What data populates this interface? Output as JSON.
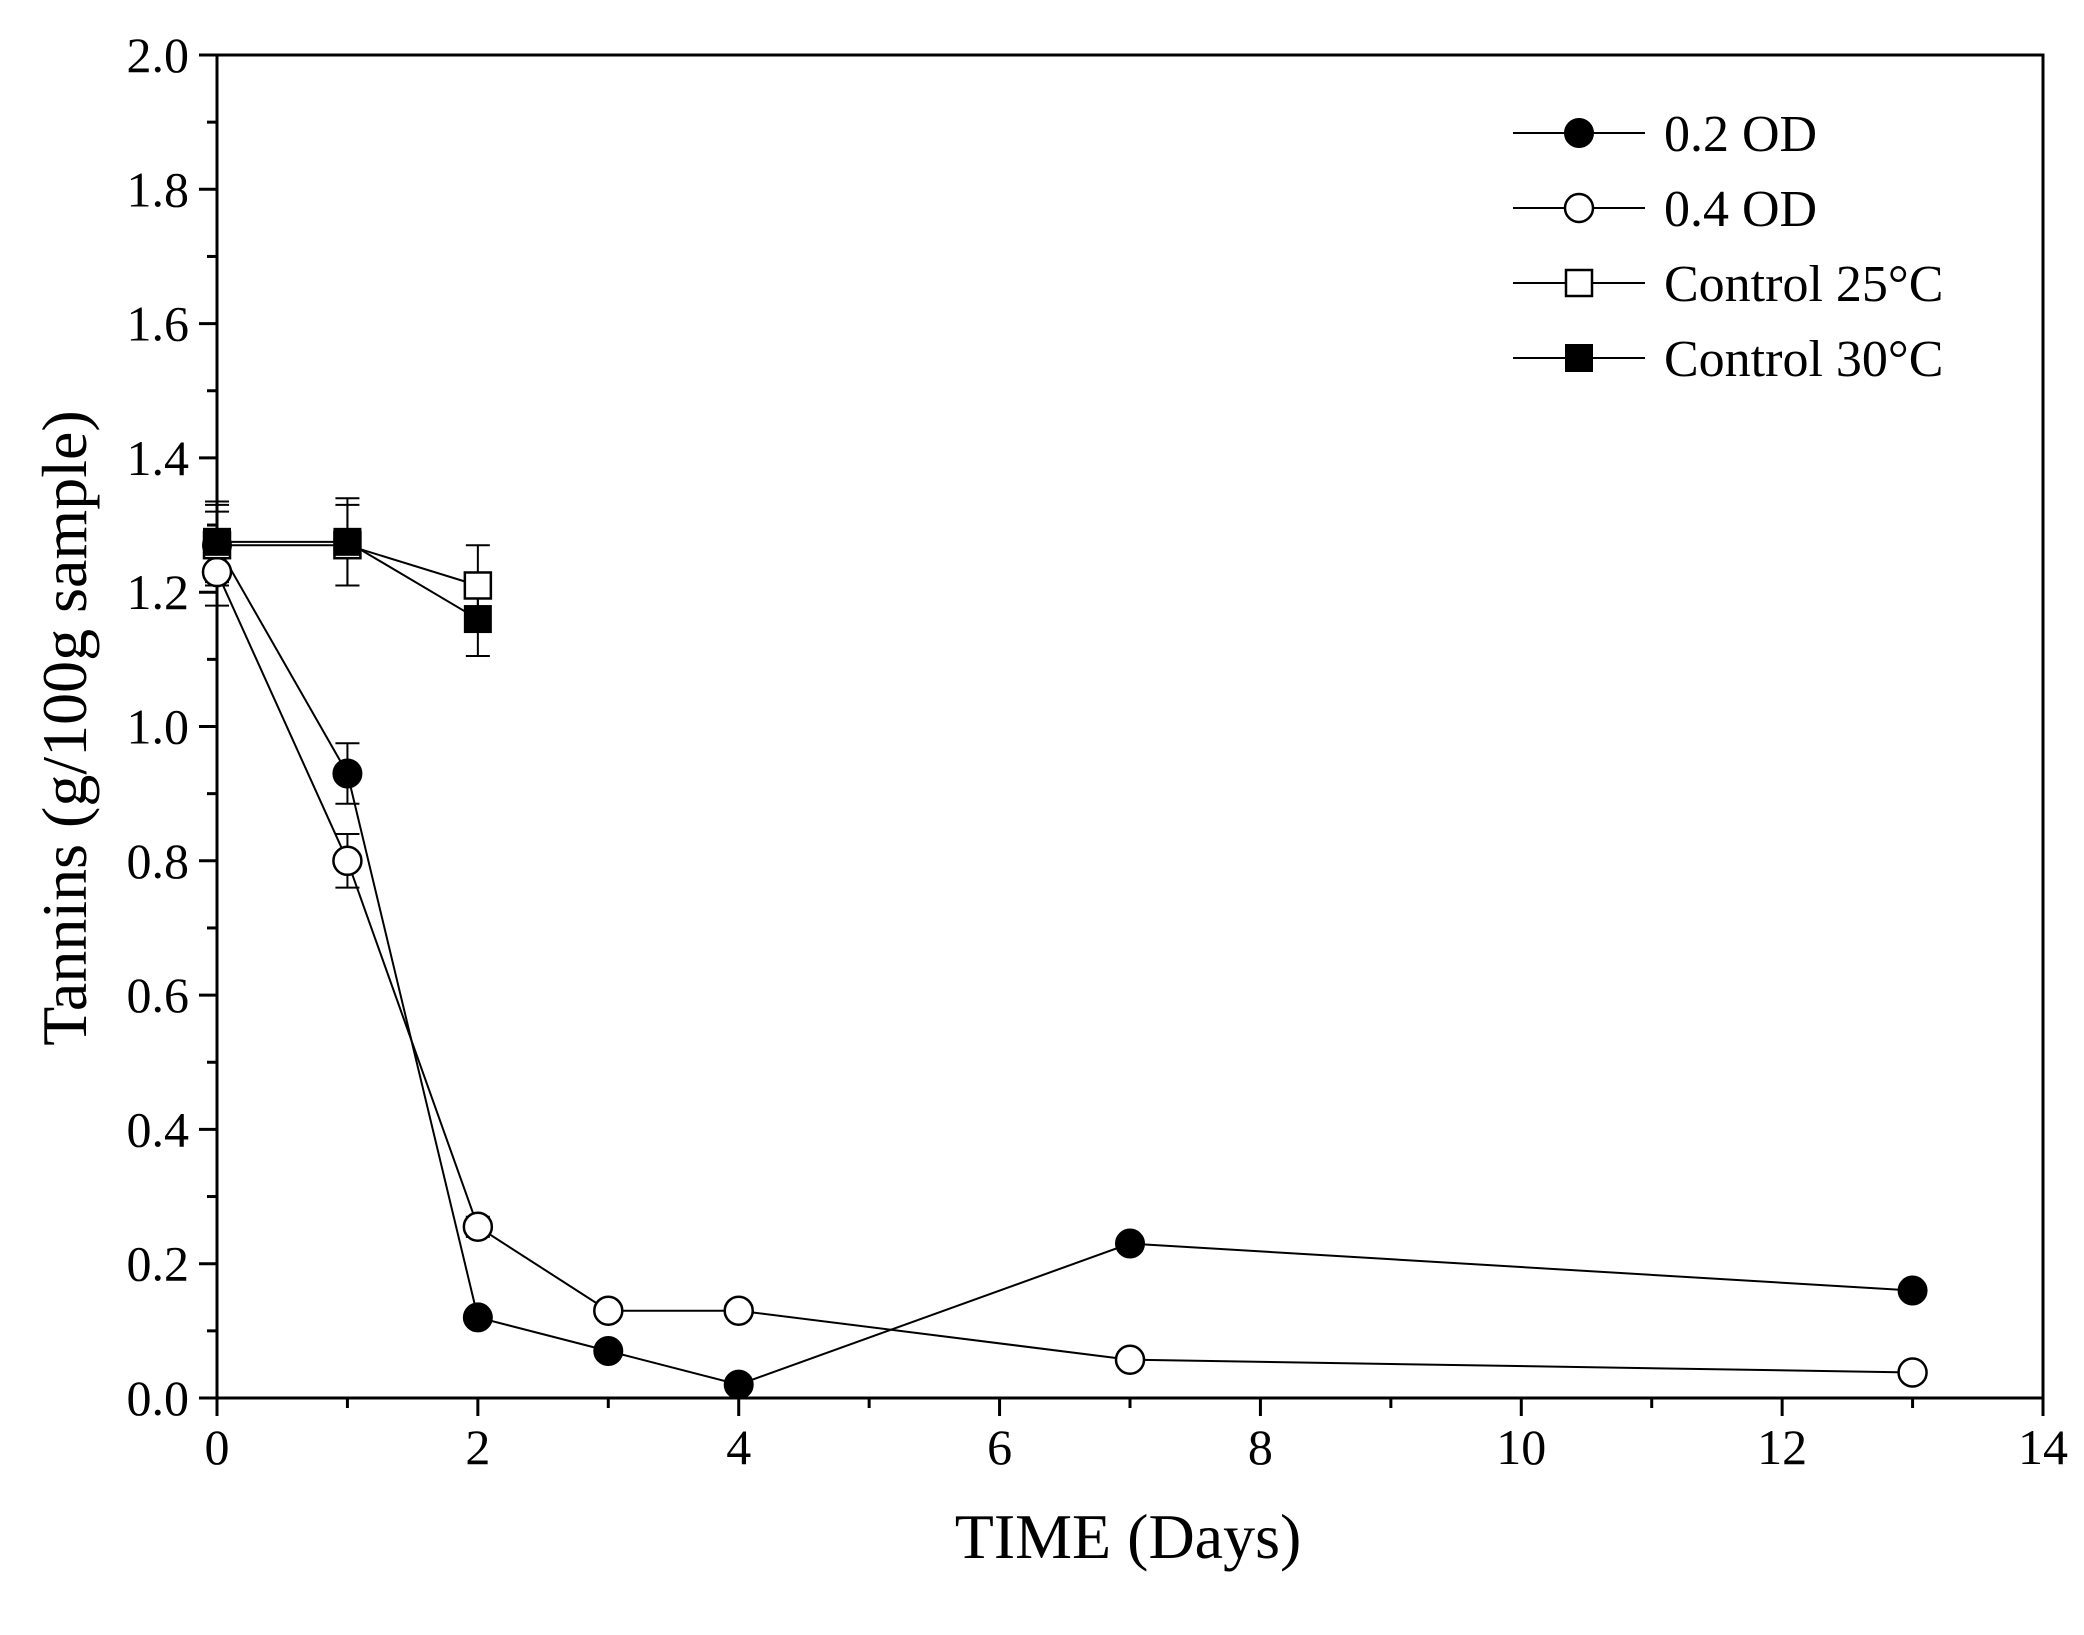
{
  "chart_data": {
    "type": "line",
    "title": "",
    "xlabel": "TIME (Days)",
    "ylabel": "Tannins (g/100g sample)",
    "xlim": [
      0,
      14
    ],
    "ylim": [
      0.0,
      2.0
    ],
    "xticks": [
      0,
      2,
      4,
      6,
      8,
      10,
      12,
      14
    ],
    "xtick_labels": [
      "0",
      "2",
      "4",
      "6",
      "8",
      "10",
      "12",
      "14"
    ],
    "yticks": [
      0.0,
      0.2,
      0.4,
      0.6,
      0.8,
      1.0,
      1.2,
      1.4,
      1.6,
      1.8,
      2.0
    ],
    "ytick_labels": [
      "0.0",
      "0.2",
      "0.4",
      "0.6",
      "0.8",
      "1.0",
      "1.2",
      "1.4",
      "1.6",
      "1.8",
      "2.0"
    ],
    "grid": false,
    "legend_position": "top-right",
    "series": [
      {
        "name": "0.2 OD",
        "marker": "filled-circle",
        "x": [
          0,
          1,
          2,
          3,
          4,
          7,
          13
        ],
        "y": [
          1.27,
          0.93,
          0.12,
          0.07,
          0.02,
          0.23,
          0.16
        ],
        "err": [
          0.05,
          0.045,
          0.01,
          0.01,
          0.005,
          0.01,
          0.01
        ]
      },
      {
        "name": "0.4 OD",
        "marker": "open-circle",
        "x": [
          0,
          1,
          2,
          3,
          4,
          7,
          13
        ],
        "y": [
          1.23,
          0.8,
          0.255,
          0.13,
          0.13,
          0.057,
          0.038
        ],
        "err": [
          0.05,
          0.04,
          0.015,
          0.01,
          0.01,
          0.01,
          0.01
        ]
      },
      {
        "name": "Control 25°C",
        "marker": "open-square",
        "x": [
          0,
          1,
          2
        ],
        "y": [
          1.27,
          1.27,
          1.21
        ],
        "err": [
          0.06,
          0.06,
          0.06
        ]
      },
      {
        "name": "Control 30°C",
        "marker": "filled-square",
        "x": [
          0,
          1,
          2
        ],
        "y": [
          1.275,
          1.275,
          1.16
        ],
        "err": [
          0.06,
          0.065,
          0.055
        ]
      }
    ]
  }
}
